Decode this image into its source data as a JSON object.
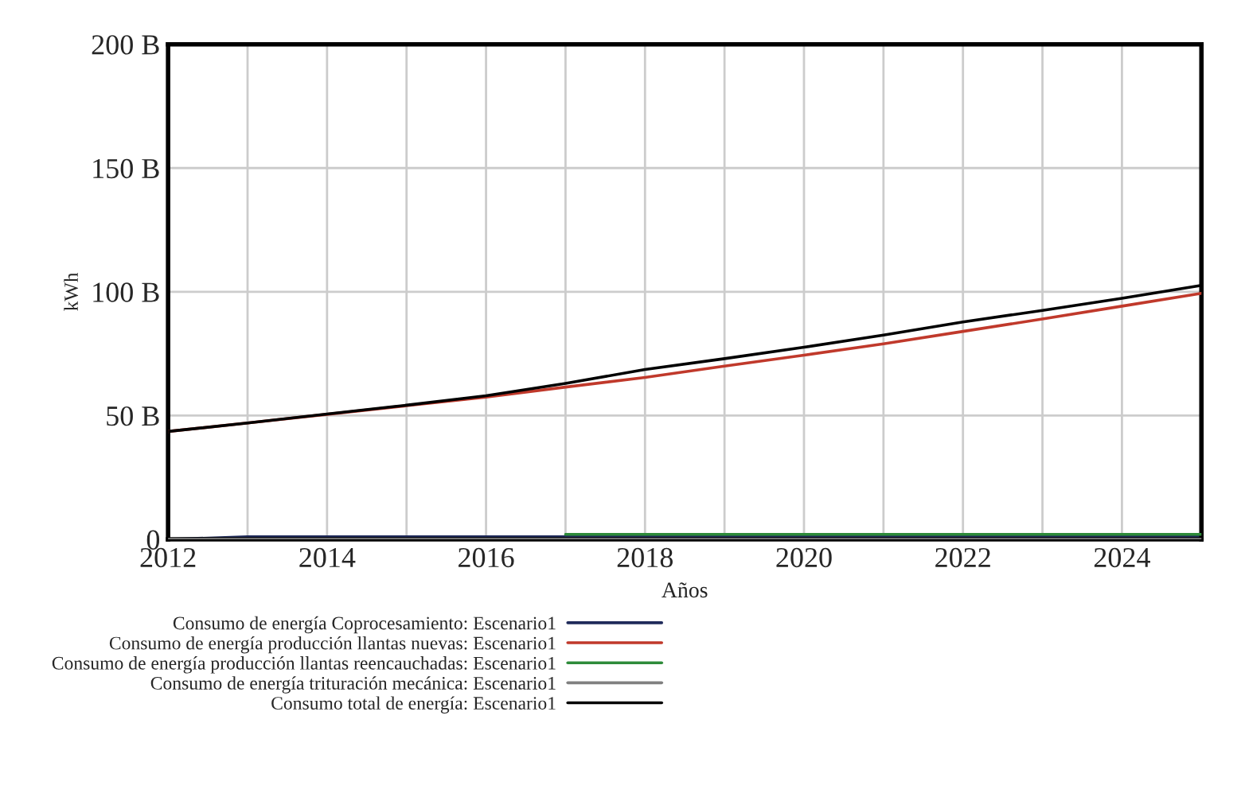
{
  "chart_data": {
    "type": "line",
    "xlabel": "Años",
    "ylabel": "kWh",
    "x": [
      2012,
      2013,
      2014,
      2015,
      2016,
      2017,
      2018,
      2019,
      2020,
      2021,
      2022,
      2023,
      2024,
      2025
    ],
    "series": [
      {
        "name": "Consumo de energía Coprocesamiento: Escenario1",
        "color": "#1f2a5a",
        "values": [
          0,
          1,
          1,
          1,
          1,
          1,
          1,
          1,
          1,
          1,
          1,
          1,
          1,
          1
        ]
      },
      {
        "name": "Consumo de energía producción llantas nuevas: Escenario1",
        "color": "#c0392b",
        "values": [
          43.6,
          47,
          50.5,
          54,
          57.5,
          61.5,
          65.4,
          70,
          74.4,
          79,
          84,
          89,
          94.2,
          99.4
        ]
      },
      {
        "name": "Consumo de energía producción llantas reencauchadas: Escenario1",
        "color": "#2e8b3a",
        "values": [
          null,
          null,
          null,
          null,
          null,
          2,
          2,
          2,
          2,
          2,
          2,
          2,
          2,
          2
        ]
      },
      {
        "name": "Consumo de energía trituración mecánica: Escenario1",
        "color": "#808080",
        "values": [
          0,
          0,
          0,
          0,
          0,
          0,
          0,
          0,
          0,
          0,
          0,
          0,
          0,
          0
        ]
      },
      {
        "name": "Consumo total de energía: Escenario1",
        "color": "#000000",
        "values": [
          43.6,
          47,
          50.6,
          54.2,
          58,
          63,
          68.6,
          73,
          77.6,
          82.5,
          87.8,
          92.5,
          97.4,
          102.6
        ]
      }
    ],
    "xlim": [
      2012,
      2025
    ],
    "xticks": [
      2012,
      2014,
      2016,
      2018,
      2020,
      2022,
      2024
    ],
    "ylim": [
      0,
      200
    ],
    "yticks": [
      {
        "value": 0,
        "label": "0"
      },
      {
        "value": 50,
        "label": "50 B"
      },
      {
        "value": 100,
        "label": "100 B"
      },
      {
        "value": 150,
        "label": "150 B"
      },
      {
        "value": 200,
        "label": "200 B"
      }
    ],
    "grid": true,
    "legend": "bottom"
  }
}
